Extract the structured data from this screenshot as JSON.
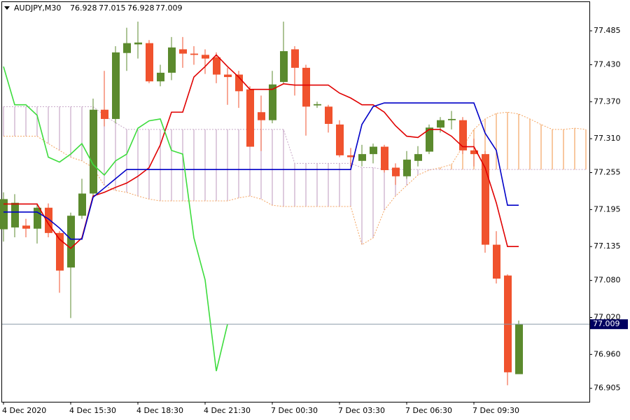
{
  "chart_data": {
    "type": "candlestick",
    "title": "AUDJPY,M30",
    "categories": [
      "4 Dec 2020",
      null,
      null,
      null,
      null,
      null,
      "4 Dec 15:30",
      null,
      null,
      null,
      null,
      null,
      "4 Dec 18:30",
      null,
      null,
      null,
      null,
      null,
      "4 Dec 21:30",
      null,
      null,
      null,
      null,
      null,
      "7 Dec 00:30",
      null,
      null,
      null,
      null,
      null,
      "7 Dec 03:30",
      null,
      null,
      null,
      null,
      null,
      "7 Dec 06:30",
      null,
      null,
      null,
      null,
      null,
      "7 Dec 09:30",
      null,
      null,
      null,
      null,
      null,
      null,
      null,
      null,
      null,
      null
    ],
    "open": [
      77.163,
      77.166,
      77.169,
      77.164,
      77.198,
      77.157,
      77.101,
      77.185,
      77.221,
      77.357,
      77.342,
      77.449,
      77.463,
      77.465,
      77.403,
      77.417,
      77.455,
      77.448,
      77.446,
      77.442,
      77.414,
      77.414,
      77.39,
      77.353,
      77.34,
      77.402,
      77.455,
      77.425,
      77.364,
      77.362,
      77.333,
      77.283,
      77.274,
      77.285,
      77.297,
      77.263,
      77.249,
      77.274,
      77.289,
      77.328,
      77.34,
      77.34,
      77.291,
      77.285,
      77.138,
      77.088,
      76.928,
      null,
      null,
      null,
      null,
      null,
      null
    ],
    "high": [
      77.223,
      77.22,
      77.18,
      77.205,
      77.205,
      77.16,
      77.19,
      77.245,
      77.375,
      77.42,
      77.46,
      77.49,
      77.5,
      77.47,
      77.43,
      77.475,
      77.475,
      77.46,
      77.455,
      77.45,
      77.425,
      77.42,
      77.395,
      77.38,
      77.42,
      77.5,
      77.46,
      77.43,
      77.37,
      77.365,
      77.34,
      77.295,
      77.3,
      77.302,
      77.3,
      77.27,
      77.29,
      77.298,
      77.333,
      77.345,
      77.355,
      77.345,
      77.31,
      77.29,
      77.16,
      77.09,
      77.015,
      null,
      null,
      null,
      null,
      null,
      null
    ],
    "low": [
      77.143,
      77.15,
      77.15,
      77.14,
      77.15,
      77.06,
      77.019,
      77.18,
      77.215,
      77.33,
      77.335,
      77.42,
      77.44,
      77.4,
      77.395,
      77.405,
      77.425,
      77.43,
      77.415,
      77.4,
      77.365,
      77.36,
      77.297,
      77.29,
      77.335,
      77.4,
      77.38,
      77.315,
      77.36,
      77.32,
      77.28,
      77.265,
      77.265,
      77.27,
      77.255,
      77.235,
      77.245,
      77.265,
      77.285,
      77.32,
      77.325,
      77.285,
      77.265,
      77.125,
      77.075,
      76.91,
      76.928,
      null,
      null,
      null,
      null,
      null,
      null
    ],
    "close": [
      77.212,
      77.206,
      77.164,
      77.198,
      77.157,
      77.096,
      77.185,
      77.221,
      77.357,
      77.342,
      77.45,
      77.465,
      77.466,
      77.403,
      77.417,
      77.458,
      77.448,
      77.446,
      77.44,
      77.414,
      77.41,
      77.387,
      77.297,
      77.34,
      77.398,
      77.452,
      77.425,
      77.362,
      77.366,
      77.334,
      77.283,
      77.28,
      77.285,
      77.297,
      77.259,
      77.249,
      77.276,
      77.285,
      77.328,
      77.34,
      77.342,
      77.291,
      77.285,
      77.138,
      77.083,
      76.931,
      77.009,
      null,
      null,
      null,
      null,
      null,
      null
    ],
    "up_color": "#5b8a2d",
    "down_color": "#f0522d",
    "series": [
      {
        "color": "#e00000",
        "style": "line",
        "values": [
          77.204,
          77.204,
          77.204,
          77.204,
          77.172,
          77.147,
          77.132,
          77.149,
          77.217,
          77.223,
          77.231,
          77.238,
          77.249,
          77.263,
          77.3,
          77.353,
          77.353,
          77.41,
          77.427,
          77.446,
          77.427,
          77.41,
          77.39,
          77.39,
          77.39,
          77.399,
          77.397,
          77.397,
          77.397,
          77.397,
          77.384,
          77.376,
          77.365,
          77.365,
          77.353,
          77.331,
          77.314,
          77.312,
          77.325,
          77.325,
          77.314,
          77.297,
          77.297,
          77.263,
          77.206,
          77.135,
          77.135,
          null,
          null,
          null,
          null,
          null,
          null
        ]
      },
      {
        "color": "#0000c8",
        "style": "line",
        "values": [
          77.191,
          77.191,
          77.191,
          77.191,
          77.18,
          77.165,
          77.147,
          77.147,
          77.215,
          77.23,
          77.245,
          77.26,
          77.26,
          77.26,
          77.26,
          77.26,
          77.26,
          77.26,
          77.26,
          77.26,
          77.26,
          77.26,
          77.26,
          77.26,
          77.26,
          77.26,
          77.26,
          77.26,
          77.26,
          77.26,
          77.26,
          77.26,
          77.333,
          77.362,
          77.368,
          77.368,
          77.368,
          77.368,
          77.368,
          77.368,
          77.368,
          77.368,
          77.368,
          77.319,
          77.291,
          77.202,
          77.202,
          null,
          null,
          null,
          null,
          null,
          null
        ]
      },
      {
        "color": "#3ddc3d",
        "style": "line",
        "values": [
          77.427,
          77.365,
          77.365,
          77.348,
          77.28,
          77.272,
          77.285,
          77.302,
          77.268,
          77.251,
          77.274,
          77.285,
          77.327,
          77.339,
          77.342,
          77.291,
          77.285,
          77.149,
          77.081,
          76.933,
          77.009,
          null,
          null,
          null,
          null,
          null,
          null,
          null,
          null,
          null,
          null,
          null,
          null,
          null,
          null,
          null,
          null,
          null,
          null,
          null,
          null,
          null,
          null,
          null,
          null,
          null,
          null,
          null,
          null,
          null,
          null,
          null,
          null
        ]
      },
      {
        "color": "#f4a460",
        "style": "cloud",
        "values": [
          77.314,
          77.314,
          77.314,
          77.314,
          77.302,
          77.291,
          77.28,
          77.274,
          77.263,
          77.234,
          77.226,
          77.223,
          77.217,
          77.212,
          77.209,
          77.209,
          77.209,
          77.209,
          77.209,
          77.209,
          77.209,
          77.214,
          77.217,
          77.212,
          77.202,
          77.2,
          77.2,
          77.2,
          77.2,
          77.2,
          77.2,
          77.2,
          77.138,
          77.149,
          77.194,
          77.217,
          77.234,
          77.251,
          77.259,
          77.263,
          77.268,
          77.297,
          77.325,
          77.342,
          77.351,
          77.353,
          77.35,
          77.342,
          77.333,
          77.325,
          77.325,
          77.327,
          77.325
        ]
      },
      {
        "color": "#c8a8c8",
        "style": "cloud",
        "values": [
          77.362,
          77.362,
          77.362,
          77.362,
          77.362,
          77.362,
          77.362,
          77.362,
          77.362,
          77.348,
          77.336,
          77.325,
          77.325,
          77.325,
          77.325,
          77.325,
          77.325,
          77.325,
          77.325,
          77.325,
          77.325,
          77.325,
          77.325,
          77.325,
          77.325,
          77.325,
          77.27,
          77.27,
          77.27,
          77.27,
          77.27,
          77.27,
          77.263,
          77.263,
          77.26,
          77.26,
          77.26,
          77.26,
          77.26,
          77.26,
          77.26,
          77.26,
          77.26,
          77.26,
          77.26,
          77.26,
          77.26,
          77.26,
          77.26,
          77.26,
          77.26,
          77.26,
          77.26
        ]
      }
    ],
    "ylim": [
      76.882,
      77.535
    ],
    "yticks": [
      77.485,
      {
        "value": 77.43,
        "label": "77.430"
      },
      {
        "value": 77.37,
        "label": "77.370"
      },
      {
        "value": 77.31,
        "label": "77.310"
      },
      77.255,
      77.195,
      77.135,
      {
        "value": 77.08,
        "label": "77.080"
      },
      {
        "value": 77.02,
        "label": "77.020"
      },
      {
        "value": 76.96,
        "label": "76.960"
      },
      76.905
    ],
    "price_line_color": "#8a9aa8",
    "price_label_color": "#000060"
  }
}
